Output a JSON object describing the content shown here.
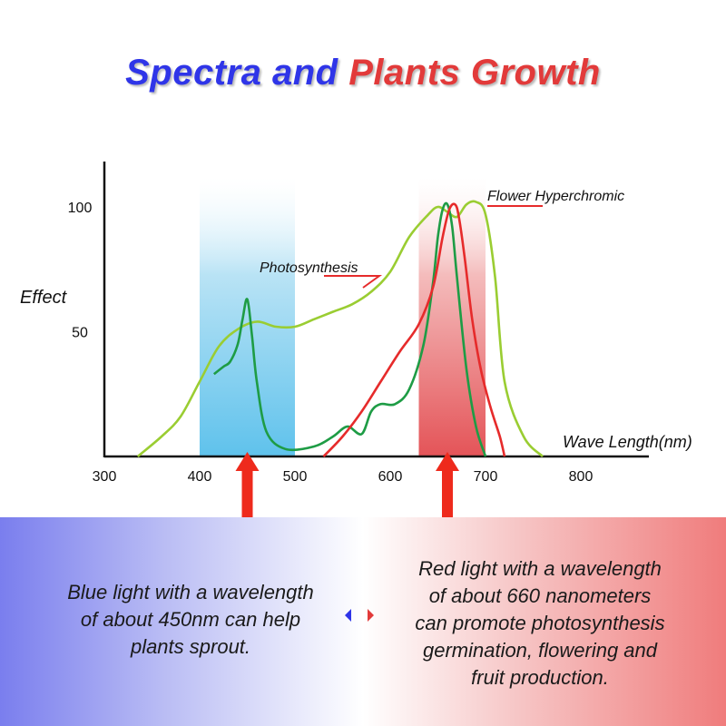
{
  "title": {
    "part1": "Spectra and",
    "part2": "Plants Growth"
  },
  "colors": {
    "title_blue": "#2f35e8",
    "title_red": "#e23a3a",
    "blue_band": "#6cc6ee",
    "red_band": "#e25a60",
    "photosynthesis_curve": "#9acd32",
    "chlorophyll_curve": "#1e9c45",
    "flowering_curve": "#e62b2b",
    "arrow_red": "#ee2a1c"
  },
  "chart_data": {
    "type": "line",
    "title": "Spectra and Plants Growth",
    "xlabel": "Wave Length(nm)",
    "ylabel": "Effect",
    "xlim": [
      300,
      850
    ],
    "ylim": [
      0,
      110
    ],
    "x_ticks": [
      300,
      400,
      500,
      600,
      700,
      800
    ],
    "y_ticks": [
      50,
      100
    ],
    "grid": false,
    "bands": [
      {
        "from": 400,
        "to": 500,
        "color": "blue"
      },
      {
        "from": 630,
        "to": 700,
        "color": "red"
      }
    ],
    "markers": [
      450,
      660
    ],
    "series": [
      {
        "name": "Photosynthesis",
        "x": [
          335,
          360,
          380,
          400,
          420,
          440,
          460,
          480,
          500,
          520,
          540,
          560,
          580,
          600,
          620,
          640,
          650,
          660,
          670,
          680,
          690,
          700,
          710,
          720,
          740,
          760
        ],
        "y": [
          0,
          8,
          16,
          30,
          44,
          51,
          54,
          52,
          52,
          55,
          58,
          61,
          66,
          74,
          88,
          97,
          100,
          98,
          96,
          101,
          102,
          97,
          72,
          30,
          8,
          0
        ]
      },
      {
        "x": [
          415,
          425,
          432,
          440,
          445,
          450,
          455,
          460,
          470,
          490,
          520,
          540,
          555,
          570,
          580,
          590,
          605,
          620,
          635,
          645,
          650,
          655,
          660,
          665,
          670,
          680,
          690,
          700
        ],
        "y": [
          33,
          36,
          38,
          45,
          55,
          63,
          48,
          30,
          10,
          3,
          4,
          8,
          12,
          9,
          18,
          21,
          21,
          27,
          45,
          70,
          88,
          99,
          101,
          92,
          72,
          35,
          12,
          0
        ]
      },
      {
        "name": "Flower Hyperchromic",
        "x": [
          530,
          550,
          570,
          590,
          610,
          630,
          645,
          655,
          662,
          668,
          672,
          678,
          686,
          695,
          705,
          715,
          720
        ],
        "y": [
          0,
          8,
          18,
          30,
          42,
          53,
          68,
          88,
          99,
          101,
          96,
          80,
          55,
          35,
          20,
          8,
          0
        ]
      }
    ],
    "annotations": [
      "Photosynthesis",
      "Flower Hyperchromic"
    ]
  },
  "axis_labels": {
    "x_ticks": [
      "300",
      "400",
      "500",
      "600",
      "700",
      "800"
    ],
    "y_ticks": [
      "50",
      "100"
    ]
  },
  "left_panel": {
    "text": "Blue light with a wavelength\nof about 450nm can help\nplants sprout."
  },
  "right_panel": {
    "text": "Red light with a wavelength\nof about 660 nanometers\ncan promote photosynthesis\ngermination, flowering and\nfruit production."
  }
}
